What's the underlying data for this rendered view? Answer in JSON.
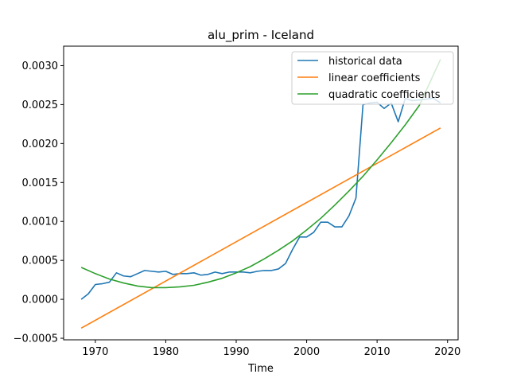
{
  "chart_data": {
    "type": "line",
    "title": "alu_prim - Iceland",
    "xlabel": "Time",
    "ylabel": "",
    "xlim": [
      1965.5,
      2021.5
    ],
    "ylim": [
      -0.00052,
      0.00325
    ],
    "xticks": [
      1970,
      1980,
      1990,
      2000,
      2010,
      2020
    ],
    "xtick_labels": [
      "1970",
      "1980",
      "1990",
      "2000",
      "2010",
      "2020"
    ],
    "yticks": [
      -0.0005,
      0.0,
      0.0005,
      0.001,
      0.0015,
      0.002,
      0.0025,
      0.003
    ],
    "ytick_labels": [
      "−0.0005",
      "0.0000",
      "0.0005",
      "0.0010",
      "0.0015",
      "0.0020",
      "0.0025",
      "0.0030"
    ],
    "grid": false,
    "legend_position": "top-right",
    "series": [
      {
        "name": "historical data",
        "color": "#1f77b4",
        "x": [
          1968,
          1969,
          1970,
          1971,
          1972,
          1973,
          1974,
          1975,
          1976,
          1977,
          1978,
          1979,
          1980,
          1981,
          1982,
          1983,
          1984,
          1985,
          1986,
          1987,
          1988,
          1989,
          1990,
          1991,
          1992,
          1993,
          1994,
          1995,
          1996,
          1997,
          1998,
          1999,
          2000,
          2001,
          2002,
          2003,
          2004,
          2005,
          2006,
          2007,
          2008,
          2009,
          2010,
          2011,
          2012,
          2013,
          2014,
          2015,
          2016,
          2017,
          2018,
          2019
        ],
        "y": [
          0.0,
          7e-05,
          0.00019,
          0.0002,
          0.00022,
          0.00034,
          0.0003,
          0.00029,
          0.00033,
          0.00037,
          0.00036,
          0.00035,
          0.00036,
          0.00032,
          0.00033,
          0.00033,
          0.00034,
          0.00031,
          0.00032,
          0.00035,
          0.00033,
          0.00035,
          0.00035,
          0.00035,
          0.00034,
          0.00036,
          0.00037,
          0.00037,
          0.00039,
          0.00046,
          0.00064,
          0.0008,
          0.0008,
          0.00086,
          0.00099,
          0.00099,
          0.00093,
          0.00093,
          0.00107,
          0.0013,
          0.0025,
          0.00252,
          0.00253,
          0.00245,
          0.00252,
          0.00228,
          0.00258,
          0.00255,
          0.00256,
          0.00257,
          0.00258,
          0.00252
        ]
      },
      {
        "name": "linear coefficients",
        "color": "#ff7f0e",
        "x": [
          1968,
          2019
        ],
        "y": [
          -0.00037,
          0.0022
        ]
      },
      {
        "name": "quadratic coefficients",
        "color": "#2ca02c",
        "x": [
          1968,
          1970,
          1972,
          1974,
          1976,
          1978,
          1980,
          1982,
          1984,
          1986,
          1988,
          1990,
          1992,
          1994,
          1996,
          1998,
          2000,
          2002,
          2004,
          2006,
          2008,
          2010,
          2012,
          2014,
          2016,
          2019
        ],
        "y": [
          0.00041,
          0.00033,
          0.00026,
          0.00021,
          0.00017,
          0.00015,
          0.00015,
          0.00016,
          0.00018,
          0.00022,
          0.00027,
          0.00034,
          0.00042,
          0.00052,
          0.00063,
          0.00075,
          0.00089,
          0.00104,
          0.00121,
          0.00139,
          0.00158,
          0.00179,
          0.00201,
          0.00224,
          0.00249,
          0.00308
        ]
      }
    ]
  }
}
